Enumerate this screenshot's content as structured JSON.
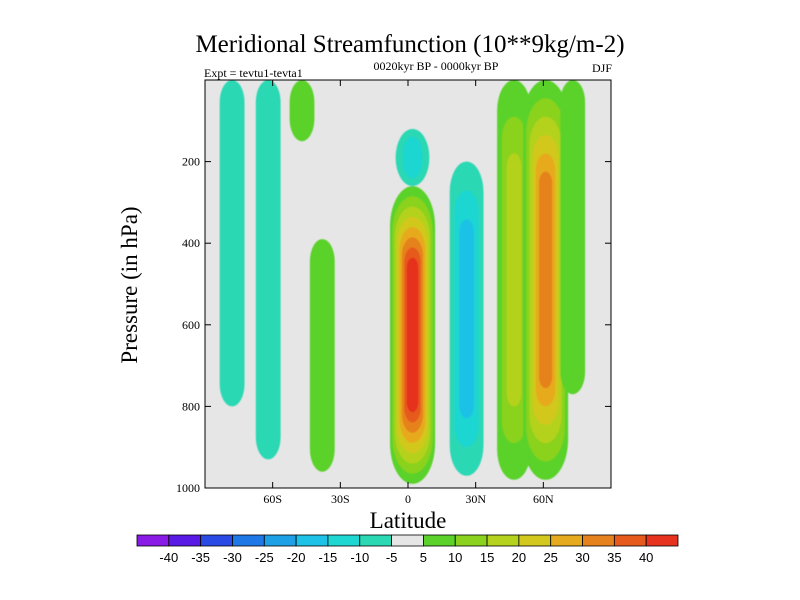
{
  "chart_data": {
    "type": "heatmap",
    "title": "Meridional Streamfunction (10**9kg/m-2)",
    "subtitle_left": "Expt = tevtu1-tevta1",
    "subtitle_center": "0020kyr BP - 0000kyr BP",
    "subtitle_right": "DJF",
    "xlabel": "Latitude",
    "ylabel": "Pressure (in hPa)",
    "xlim": [
      -90,
      90
    ],
    "ylim": [
      0,
      1000
    ],
    "y_inverted": true,
    "x_ticks": [
      {
        "value": -60,
        "label": "60S"
      },
      {
        "value": -30,
        "label": "30S"
      },
      {
        "value": 0,
        "label": "0"
      },
      {
        "value": 30,
        "label": "30N"
      },
      {
        "value": 60,
        "label": "60N"
      }
    ],
    "y_ticks": [
      {
        "value": 200,
        "label": "200"
      },
      {
        "value": 400,
        "label": "400"
      },
      {
        "value": 600,
        "label": "600"
      },
      {
        "value": 800,
        "label": "800"
      },
      {
        "value": 1000,
        "label": "1000"
      }
    ],
    "background_color": "#e6e6e6",
    "levels": [
      "-40",
      "-35",
      "-30",
      "-25",
      "-20",
      "-15",
      "-10",
      "-5",
      "5",
      "10",
      "15",
      "20",
      "25",
      "30",
      "35",
      "40"
    ],
    "colorbar": [
      {
        "bin": "< -40",
        "color": "#8a1ae6"
      },
      {
        "bin": "-40 to -35",
        "color": "#5a1ae6"
      },
      {
        "bin": "-35 to -30",
        "color": "#2a4ae6"
      },
      {
        "bin": "-30 to -25",
        "color": "#1e78e6"
      },
      {
        "bin": "-25 to -20",
        "color": "#1ea0e6"
      },
      {
        "bin": "-20 to -15",
        "color": "#1ec2e6"
      },
      {
        "bin": "-15 to -10",
        "color": "#1ed6d2"
      },
      {
        "bin": "-10 to -5",
        "color": "#2ad8b4"
      },
      {
        "bin": "-5 to 5",
        "color": "#e6e6e6"
      },
      {
        "bin": "5 to 10",
        "color": "#5ad22a"
      },
      {
        "bin": "10 to 15",
        "color": "#8ad21e"
      },
      {
        "bin": "15 to 20",
        "color": "#b4d21e"
      },
      {
        "bin": "20 to 25",
        "color": "#d2c81e"
      },
      {
        "bin": "25 to 30",
        "color": "#e6aa1e"
      },
      {
        "bin": "30 to 35",
        "color": "#e6821e"
      },
      {
        "bin": "35 to 40",
        "color": "#e65a1e"
      },
      {
        "bin": "> 40",
        "color": "#e6321e"
      }
    ],
    "features": [
      {
        "name": "southern-high-lat-cell",
        "lat_center": -78,
        "p_top": 0,
        "p_bottom": 800,
        "value": -7
      },
      {
        "name": "southern-polar-cell",
        "lat_center": -62,
        "p_top": 0,
        "p_bottom": 930,
        "value": -8
      },
      {
        "name": "southern-ferrel-upper-cell",
        "lat_center": -47,
        "p_top": 0,
        "p_bottom": 150,
        "value": 7
      },
      {
        "name": "southern-ferrel-cell",
        "lat_center": -38,
        "p_top": 390,
        "p_bottom": 960,
        "value": 8
      },
      {
        "name": "upper-tropical-negative-cell",
        "lat_center": 2,
        "p_top": 120,
        "p_bottom": 260,
        "value": -14
      },
      {
        "name": "hadley-cell",
        "lat_center": 2,
        "p_top": 260,
        "p_bottom": 990,
        "value": 41
      },
      {
        "name": "northern-subtropical-negative-cell",
        "lat_center": 26,
        "p_top": 200,
        "p_bottom": 970,
        "value": -16
      },
      {
        "name": "northern-midlatitude-cell",
        "lat_center": 47,
        "p_top": 0,
        "p_bottom": 980,
        "value": 19
      },
      {
        "name": "northern-subpolar-cell",
        "lat_center": 61,
        "p_top": 0,
        "p_bottom": 980,
        "value": 30
      },
      {
        "name": "northern-high-lat-cell",
        "lat_center": 73,
        "p_top": 0,
        "p_bottom": 770,
        "value": 7
      }
    ]
  }
}
